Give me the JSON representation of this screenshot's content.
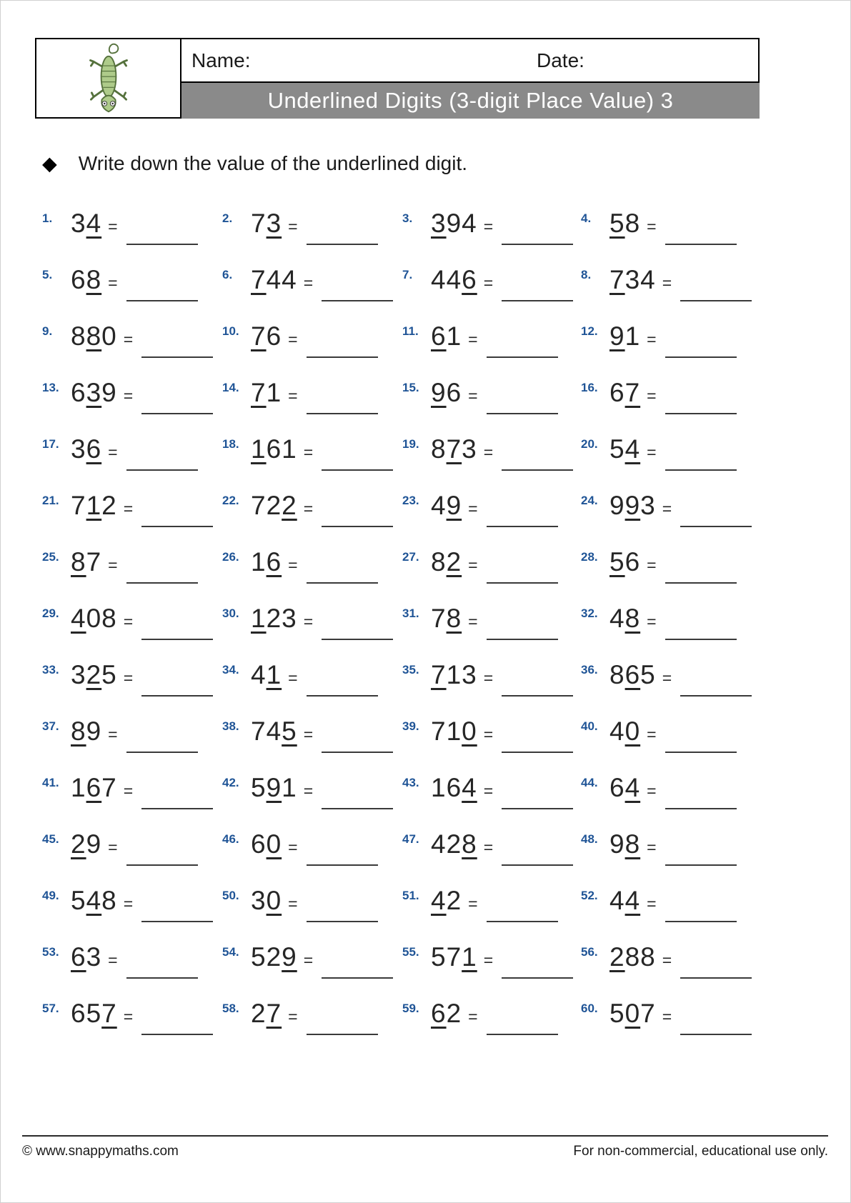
{
  "header": {
    "name_label": "Name:",
    "date_label": "Date:",
    "title": "Underlined Digits (3-digit Place Value) 3"
  },
  "instruction": {
    "bullet": "◆",
    "text": "Write down the value of the underlined digit."
  },
  "equals_sign": "=",
  "problems": [
    {
      "num": "1.",
      "value": "34",
      "underline_index": 1
    },
    {
      "num": "2.",
      "value": "73",
      "underline_index": 1
    },
    {
      "num": "3.",
      "value": "394",
      "underline_index": 0
    },
    {
      "num": "4.",
      "value": "58",
      "underline_index": 0
    },
    {
      "num": "5.",
      "value": "68",
      "underline_index": 1
    },
    {
      "num": "6.",
      "value": "744",
      "underline_index": 0
    },
    {
      "num": "7.",
      "value": "446",
      "underline_index": 2
    },
    {
      "num": "8.",
      "value": "734",
      "underline_index": 0
    },
    {
      "num": "9.",
      "value": "880",
      "underline_index": 1
    },
    {
      "num": "10.",
      "value": "76",
      "underline_index": 0
    },
    {
      "num": "11.",
      "value": "61",
      "underline_index": 0
    },
    {
      "num": "12.",
      "value": "91",
      "underline_index": 0
    },
    {
      "num": "13.",
      "value": "639",
      "underline_index": 1
    },
    {
      "num": "14.",
      "value": "71",
      "underline_index": 0
    },
    {
      "num": "15.",
      "value": "96",
      "underline_index": 0
    },
    {
      "num": "16.",
      "value": "67",
      "underline_index": 1
    },
    {
      "num": "17.",
      "value": "36",
      "underline_index": 1
    },
    {
      "num": "18.",
      "value": "161",
      "underline_index": 0
    },
    {
      "num": "19.",
      "value": "873",
      "underline_index": 1
    },
    {
      "num": "20.",
      "value": "54",
      "underline_index": 1
    },
    {
      "num": "21.",
      "value": "712",
      "underline_index": 1
    },
    {
      "num": "22.",
      "value": "722",
      "underline_index": 2
    },
    {
      "num": "23.",
      "value": "49",
      "underline_index": 1
    },
    {
      "num": "24.",
      "value": "993",
      "underline_index": 1
    },
    {
      "num": "25.",
      "value": "87",
      "underline_index": 0
    },
    {
      "num": "26.",
      "value": "16",
      "underline_index": 1
    },
    {
      "num": "27.",
      "value": "82",
      "underline_index": 1
    },
    {
      "num": "28.",
      "value": "56",
      "underline_index": 0
    },
    {
      "num": "29.",
      "value": "408",
      "underline_index": 0
    },
    {
      "num": "30.",
      "value": "123",
      "underline_index": 0
    },
    {
      "num": "31.",
      "value": "78",
      "underline_index": 1
    },
    {
      "num": "32.",
      "value": "48",
      "underline_index": 1
    },
    {
      "num": "33.",
      "value": "325",
      "underline_index": 1
    },
    {
      "num": "34.",
      "value": "41",
      "underline_index": 1
    },
    {
      "num": "35.",
      "value": "713",
      "underline_index": 0
    },
    {
      "num": "36.",
      "value": "865",
      "underline_index": 1
    },
    {
      "num": "37.",
      "value": "89",
      "underline_index": 0
    },
    {
      "num": "38.",
      "value": "745",
      "underline_index": 2
    },
    {
      "num": "39.",
      "value": "710",
      "underline_index": 2
    },
    {
      "num": "40.",
      "value": "40",
      "underline_index": 1
    },
    {
      "num": "41.",
      "value": "167",
      "underline_index": 1
    },
    {
      "num": "42.",
      "value": "591",
      "underline_index": 1
    },
    {
      "num": "43.",
      "value": "164",
      "underline_index": 2
    },
    {
      "num": "44.",
      "value": "64",
      "underline_index": 1
    },
    {
      "num": "45.",
      "value": "29",
      "underline_index": 0
    },
    {
      "num": "46.",
      "value": "60",
      "underline_index": 1
    },
    {
      "num": "47.",
      "value": "428",
      "underline_index": 2
    },
    {
      "num": "48.",
      "value": "98",
      "underline_index": 1
    },
    {
      "num": "49.",
      "value": "548",
      "underline_index": 1
    },
    {
      "num": "50.",
      "value": "30",
      "underline_index": 1
    },
    {
      "num": "51.",
      "value": "42",
      "underline_index": 0
    },
    {
      "num": "52.",
      "value": "44",
      "underline_index": 1
    },
    {
      "num": "53.",
      "value": "63",
      "underline_index": 0
    },
    {
      "num": "54.",
      "value": "529",
      "underline_index": 2
    },
    {
      "num": "55.",
      "value": "571",
      "underline_index": 2
    },
    {
      "num": "56.",
      "value": "288",
      "underline_index": 0
    },
    {
      "num": "57.",
      "value": "657",
      "underline_index": 2
    },
    {
      "num": "58.",
      "value": "27",
      "underline_index": 1
    },
    {
      "num": "59.",
      "value": "62",
      "underline_index": 0
    },
    {
      "num": "60.",
      "value": "507",
      "underline_index": 1
    }
  ],
  "footer": {
    "left": "© www.snappymaths.com",
    "right": "For non-commercial, educational use only."
  },
  "colors": {
    "label_blue": "#1f5496",
    "title_bar_gray": "#8a8a8a",
    "text_black": "#262626"
  }
}
